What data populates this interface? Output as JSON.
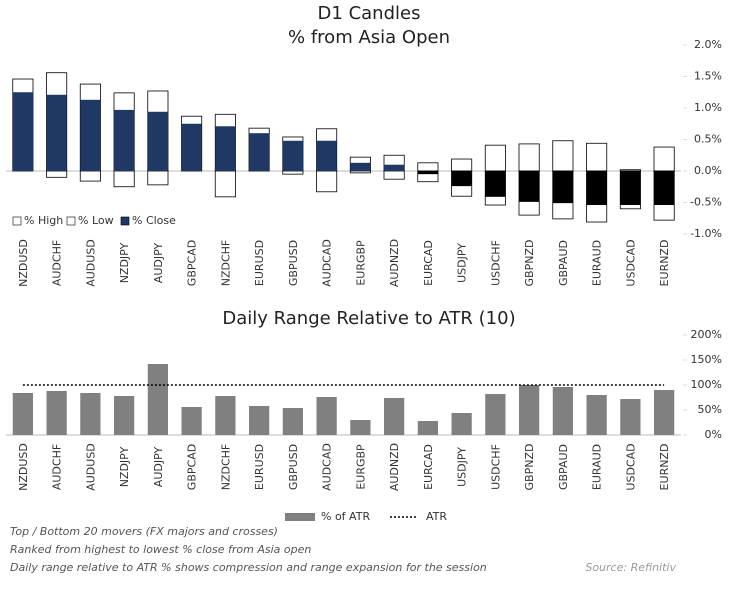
{
  "chart_data": [
    {
      "type": "range_bar",
      "title": "D1 Candles",
      "subtitle": "% from Asia Open",
      "categories": [
        "NZDUSD",
        "AUDCHF",
        "AUDUSD",
        "NZDJPY",
        "AUDJPY",
        "GBPCAD",
        "NZDCHF",
        "EURUSD",
        "GBPUSD",
        "AUDCAD",
        "EURGBP",
        "AUDNZD",
        "EURCAD",
        "USDJPY",
        "USDCHF",
        "GBPNZD",
        "GBPAUD",
        "EURAUD",
        "USDCAD",
        "EURNZD"
      ],
      "series": [
        {
          "name": "% High",
          "color": "#ffffff",
          "values": [
            1.46,
            1.56,
            1.38,
            1.24,
            1.27,
            0.87,
            0.9,
            0.68,
            0.54,
            0.67,
            0.22,
            0.25,
            0.13,
            0.19,
            0.41,
            0.43,
            0.48,
            0.44,
            0.02,
            0.38
          ]
        },
        {
          "name": "% Low",
          "color": "#ffffff",
          "values": [
            0,
            -0.1,
            -0.16,
            -0.25,
            -0.22,
            0,
            -0.41,
            0,
            -0.05,
            -0.33,
            -0.03,
            -0.13,
            -0.17,
            -0.4,
            -0.54,
            -0.7,
            -0.76,
            -0.81,
            -0.6,
            -0.78
          ]
        },
        {
          "name": "% Close",
          "color": "#1f3864",
          "negative_color": "#000000",
          "values": [
            1.25,
            1.21,
            1.13,
            0.97,
            0.94,
            0.75,
            0.71,
            0.6,
            0.48,
            0.48,
            0.13,
            0.1,
            -0.05,
            -0.24,
            -0.41,
            -0.49,
            -0.51,
            -0.54,
            -0.54,
            -0.54
          ]
        }
      ],
      "ylim": [
        -1.0,
        2.0
      ],
      "yticks": [
        {
          "value": 2.0,
          "label": "2.0%"
        },
        {
          "value": 1.5,
          "label": "1.5%"
        },
        {
          "value": 1.0,
          "label": "1.0%"
        },
        {
          "value": 0.5,
          "label": "0.5%"
        },
        {
          "value": 0.0,
          "label": "0.0%"
        },
        {
          "value": -0.5,
          "label": "-0.5%"
        },
        {
          "value": -1.0,
          "label": "-1.0%"
        }
      ],
      "legend": "lower left"
    },
    {
      "type": "bar",
      "title": "Daily Range Relative to ATR (10)",
      "categories": [
        "NZDUSD",
        "AUDCHF",
        "AUDUSD",
        "NZDJPY",
        "AUDJPY",
        "GBPCAD",
        "NZDCHF",
        "EURUSD",
        "GBPUSD",
        "AUDCAD",
        "EURGBP",
        "AUDNZD",
        "EURCAD",
        "USDJPY",
        "USDCHF",
        "GBPNZD",
        "GBPAUD",
        "EURAUD",
        "USDCAD",
        "EURNZD"
      ],
      "series": [
        {
          "name": "% of ATR",
          "color": "#808080",
          "values": [
            84,
            88,
            84,
            78,
            142,
            56,
            78,
            58,
            54,
            76,
            30,
            74,
            28,
            44,
            82,
            100,
            96,
            80,
            72,
            90
          ]
        },
        {
          "name": "ATR",
          "color": "#000000",
          "type": "line",
          "style": "dotted",
          "values": [
            100,
            100,
            100,
            100,
            100,
            100,
            100,
            100,
            100,
            100,
            100,
            100,
            100,
            100,
            100,
            100,
            100,
            100,
            100,
            100
          ]
        }
      ],
      "ylim": [
        0,
        200
      ],
      "yticks": [
        {
          "value": 200,
          "label": "200%"
        },
        {
          "value": 150,
          "label": "150%"
        },
        {
          "value": 100,
          "label": "100%"
        },
        {
          "value": 50,
          "label": "50%"
        },
        {
          "value": 0,
          "label": "0%"
        }
      ],
      "legend": "lower center"
    }
  ],
  "notes": [
    "Top / Bottom 20 movers (FX majors and crosses)",
    "Ranked from highest to lowest % close from Asia open",
    "Daily range relative to ATR % shows compression and range expansion for the session"
  ],
  "source": "Source: Refinitiv"
}
